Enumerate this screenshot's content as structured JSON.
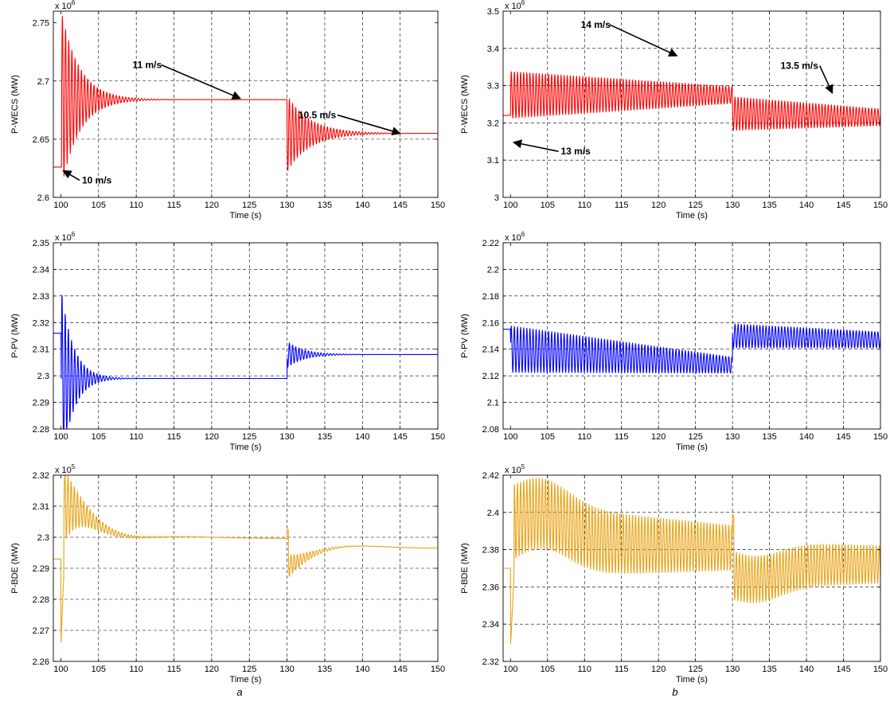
{
  "captions": {
    "left": "a",
    "right": "b"
  },
  "colors": {
    "red": "#ff0000",
    "blue": "#0000ff",
    "orange": "#e8a317"
  },
  "chart_data": [
    {
      "type": "line",
      "xlabel": "Time (s)",
      "ylabel": "P-WECS (MW)",
      "xlim": [
        99,
        150
      ],
      "ylim": [
        2.6,
        2.76
      ],
      "exponent": "x 10^6",
      "exp_base": "x 10",
      "exp_pow": "6",
      "xticks": [
        100,
        105,
        110,
        115,
        120,
        125,
        130,
        135,
        140,
        145,
        150
      ],
      "yticks": [
        2.6,
        2.65,
        2.7,
        2.75
      ],
      "ytick_labels": [
        "2.6",
        "2.65",
        "2.7",
        "2.75"
      ],
      "grid": true,
      "color": "#ff0000",
      "signal": {
        "y0": 2.626,
        "t1": 100.1,
        "y1": 2.684,
        "a1": 0.075,
        "tau1": 2.4,
        "t2": 130,
        "y2": 2.655,
        "a2": 0.033,
        "tau2": 3.0,
        "period": 0.42
      },
      "annotations": [
        {
          "text": "10 m/s",
          "tx": 102.8,
          "ty": 2.612,
          "ax": 100.3,
          "ay": 2.623
        },
        {
          "text": "11 m/s",
          "tx": 109.5,
          "ty": 2.711,
          "ax": 123.8,
          "ay": 2.685
        },
        {
          "text": "10.5 m/s",
          "tx": 131.5,
          "ty": 2.668,
          "ax": 145.0,
          "ay": 2.655
        }
      ]
    },
    {
      "type": "line",
      "xlabel": "Time (s)",
      "ylabel": "P-WECS (MW)",
      "xlim": [
        99,
        150
      ],
      "ylim": [
        3.0,
        3.5
      ],
      "exponent": "x 10^6",
      "exp_base": "x 10",
      "exp_pow": "6",
      "xticks": [
        100,
        105,
        110,
        115,
        120,
        125,
        130,
        135,
        140,
        145,
        150
      ],
      "yticks": [
        3,
        3.1,
        3.2,
        3.3,
        3.4,
        3.5
      ],
      "ytick_labels": [
        "3",
        "3.1",
        "3.2",
        "3.3",
        "3.4",
        "3.5"
      ],
      "grid": true,
      "color": "#ff0000",
      "signal": {
        "y0": 3.22,
        "osc": true,
        "seg1_start": [
          100.0,
          3.275,
          0.125
        ],
        "seg1_end": [
          130.0,
          3.275,
          0.045
        ],
        "seg2_start": [
          130.0,
          3.225,
          0.09
        ],
        "seg2_end": [
          150.0,
          3.215,
          0.045
        ],
        "period": 0.42
      },
      "annotations": [
        {
          "text": "14 m/s",
          "tx": 109.5,
          "ty": 3.455,
          "ax": 122.5,
          "ay": 3.38
        },
        {
          "text": "13.5 m/s",
          "tx": 136.5,
          "ty": 3.345,
          "ax": 143.5,
          "ay": 3.28
        },
        {
          "text": "13 m/s",
          "tx": 106.8,
          "ty": 3.115,
          "ax": 100.4,
          "ay": 3.148
        }
      ]
    },
    {
      "type": "line",
      "xlabel": "Time (s)",
      "ylabel": "P-PV (MW)",
      "xlim": [
        99,
        150
      ],
      "ylim": [
        2.28,
        2.35
      ],
      "exponent": "x 10^6",
      "exp_base": "x 10",
      "exp_pow": "6",
      "xticks": [
        100,
        105,
        110,
        115,
        120,
        125,
        130,
        135,
        140,
        145,
        150
      ],
      "yticks": [
        2.28,
        2.29,
        2.3,
        2.31,
        2.32,
        2.33,
        2.34,
        2.35
      ],
      "ytick_labels": [
        "2.28",
        "2.29",
        "2.3",
        "2.31",
        "2.32",
        "2.33",
        "2.34",
        "2.35"
      ],
      "grid": true,
      "color": "#0000ff",
      "signal": {
        "y0": 2.316,
        "t1": 100.05,
        "y1": 2.299,
        "a1": 0.034,
        "tau1": 1.6,
        "t2": 130,
        "y2": 2.308,
        "a2": 0.005,
        "tau2": 2.2,
        "period": 0.42
      },
      "annotations": []
    },
    {
      "type": "line",
      "xlabel": "Time (s)",
      "ylabel": "P-PV (MW)",
      "xlim": [
        99,
        150
      ],
      "ylim": [
        2.08,
        2.22
      ],
      "exponent": "x 10^6",
      "exp_base": "x 10",
      "exp_pow": "6",
      "xticks": [
        100,
        105,
        110,
        115,
        120,
        125,
        130,
        135,
        140,
        145,
        150
      ],
      "yticks": [
        2.08,
        2.1,
        2.12,
        2.14,
        2.16,
        2.18,
        2.2,
        2.22
      ],
      "ytick_labels": [
        "2.08",
        "2.1",
        "2.12",
        "2.14",
        "2.16",
        "2.18",
        "2.2",
        "2.22"
      ],
      "grid": true,
      "color": "#0000ff",
      "signal": {
        "y0": 2.155,
        "osc": true,
        "seg1_start": [
          100.0,
          2.14,
          0.035
        ],
        "seg1_end": [
          130.0,
          2.128,
          0.012
        ],
        "seg2_start": [
          130.0,
          2.15,
          0.018
        ],
        "seg2_end": [
          150.0,
          2.147,
          0.012
        ],
        "period": 0.42
      },
      "annotations": []
    },
    {
      "type": "line",
      "xlabel": "Time (s)",
      "ylabel": "P-BDE (MW)",
      "xlim": [
        99,
        150
      ],
      "ylim": [
        2.26,
        2.32
      ],
      "exponent": "x 10^5",
      "exp_base": "x 10",
      "exp_pow": "5",
      "xticks": [
        100,
        105,
        110,
        115,
        120,
        125,
        130,
        135,
        140,
        145,
        150
      ],
      "yticks": [
        2.26,
        2.27,
        2.28,
        2.29,
        2.3,
        2.31,
        2.32
      ],
      "ytick_labels": [
        "2.26",
        "2.27",
        "2.28",
        "2.29",
        "2.3",
        "2.31",
        "2.32"
      ],
      "grid": true,
      "color": "#e8a317",
      "signal": {
        "y0": 2.293,
        "bde": "a",
        "period": 0.42
      },
      "annotations": []
    },
    {
      "type": "line",
      "xlabel": "Time (s)",
      "ylabel": "P-BDE (MW)",
      "xlim": [
        99,
        150
      ],
      "ylim": [
        2.32,
        2.42
      ],
      "exponent": "x 10^5",
      "exp_base": "x 10",
      "exp_pow": "5",
      "xticks": [
        100,
        105,
        110,
        115,
        120,
        125,
        130,
        135,
        140,
        145,
        150
      ],
      "yticks": [
        2.32,
        2.34,
        2.36,
        2.38,
        2.4,
        2.42
      ],
      "ytick_labels": [
        "2.32",
        "2.34",
        "2.36",
        "2.38",
        "2.4",
        "2.42"
      ],
      "grid": true,
      "color": "#e8a317",
      "signal": {
        "y0": 2.37,
        "bde": "b",
        "period": 0.42
      },
      "annotations": []
    }
  ]
}
